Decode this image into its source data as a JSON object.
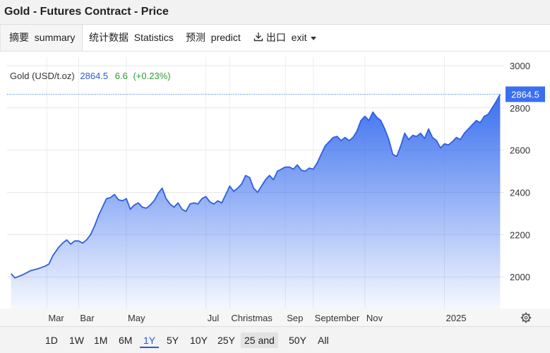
{
  "window": {
    "title": "Gold - Futures Contract - Price"
  },
  "tabs": [
    {
      "label": "摘要  summary",
      "active": true
    },
    {
      "label": "统计数据  Statistics",
      "active": false
    },
    {
      "label": "预测  predict",
      "active": false
    },
    {
      "label": "出口  exit",
      "active": false
    }
  ],
  "quote": {
    "name": "Gold (USD/t.oz)",
    "price": "2864.5",
    "change": "6.6",
    "change_pct": "(+0.23%)",
    "colors": {
      "price": "#2a5bd7",
      "change": "#2a9d3a"
    }
  },
  "range_buttons": [
    {
      "label": "1D",
      "active": false
    },
    {
      "label": "1W",
      "active": false
    },
    {
      "label": "1M",
      "active": false
    },
    {
      "label": "6M",
      "active": false
    },
    {
      "label": "1Y",
      "active": true
    },
    {
      "label": "5Y",
      "active": false
    },
    {
      "label": "10Y",
      "active": false
    },
    {
      "label": "25Y",
      "active": false
    },
    {
      "label": "25 and",
      "active": false
    },
    {
      "label": "50Y",
      "active": false
    },
    {
      "label": "All",
      "active": false
    }
  ],
  "chart_data": {
    "type": "area",
    "title": "",
    "xlabel": "",
    "ylabel": "",
    "ylim": [
      1850,
      3040
    ],
    "y_ticks": [
      2000,
      2200,
      2400,
      2600,
      2800,
      3000
    ],
    "x_ticks": [
      {
        "label": "Mar",
        "x": 1.0
      },
      {
        "label": "Bar",
        "x": 1.8
      },
      {
        "label": "May",
        "x": 3.0
      },
      {
        "label": "Jul",
        "x": 5.0
      },
      {
        "label": "Christmas",
        "x": 5.6
      },
      {
        "label": "Sep",
        "x": 7.0
      },
      {
        "label": "September",
        "x": 7.7
      },
      {
        "label": "Nov",
        "x": 9.0
      },
      {
        "label": "2025",
        "x": 11.0
      }
    ],
    "last_value": 2864.5,
    "last_value_label": "2864.5",
    "accent_color": "#3a6fef",
    "grid": true,
    "series": [
      {
        "points": [
          [
            0.1,
            2015
          ],
          [
            0.2,
            1995
          ],
          [
            0.4,
            2010
          ],
          [
            0.6,
            2030
          ],
          [
            0.8,
            2040
          ],
          [
            0.95,
            2050
          ],
          [
            1.05,
            2060
          ],
          [
            1.15,
            2100
          ],
          [
            1.3,
            2140
          ],
          [
            1.4,
            2160
          ],
          [
            1.5,
            2175
          ],
          [
            1.6,
            2155
          ],
          [
            1.7,
            2170
          ],
          [
            1.8,
            2170
          ],
          [
            1.9,
            2160
          ],
          [
            2.0,
            2175
          ],
          [
            2.1,
            2200
          ],
          [
            2.2,
            2240
          ],
          [
            2.3,
            2290
          ],
          [
            2.4,
            2330
          ],
          [
            2.5,
            2370
          ],
          [
            2.6,
            2375
          ],
          [
            2.7,
            2390
          ],
          [
            2.8,
            2365
          ],
          [
            2.9,
            2360
          ],
          [
            3.0,
            2370
          ],
          [
            3.1,
            2320
          ],
          [
            3.2,
            2340
          ],
          [
            3.3,
            2350
          ],
          [
            3.4,
            2330
          ],
          [
            3.5,
            2325
          ],
          [
            3.6,
            2340
          ],
          [
            3.7,
            2360
          ],
          [
            3.8,
            2395
          ],
          [
            3.9,
            2420
          ],
          [
            4.0,
            2370
          ],
          [
            4.1,
            2345
          ],
          [
            4.2,
            2330
          ],
          [
            4.3,
            2350
          ],
          [
            4.4,
            2320
          ],
          [
            4.5,
            2310
          ],
          [
            4.6,
            2345
          ],
          [
            4.7,
            2350
          ],
          [
            4.8,
            2345
          ],
          [
            4.9,
            2370
          ],
          [
            5.0,
            2380
          ],
          [
            5.1,
            2355
          ],
          [
            5.2,
            2345
          ],
          [
            5.3,
            2360
          ],
          [
            5.4,
            2350
          ],
          [
            5.5,
            2390
          ],
          [
            5.6,
            2430
          ],
          [
            5.7,
            2405
          ],
          [
            5.8,
            2420
          ],
          [
            5.9,
            2440
          ],
          [
            6.0,
            2480
          ],
          [
            6.1,
            2470
          ],
          [
            6.2,
            2420
          ],
          [
            6.3,
            2400
          ],
          [
            6.4,
            2430
          ],
          [
            6.5,
            2460
          ],
          [
            6.6,
            2480
          ],
          [
            6.7,
            2460
          ],
          [
            6.8,
            2500
          ],
          [
            6.9,
            2510
          ],
          [
            7.0,
            2520
          ],
          [
            7.1,
            2520
          ],
          [
            7.2,
            2510
          ],
          [
            7.3,
            2530
          ],
          [
            7.4,
            2505
          ],
          [
            7.5,
            2500
          ],
          [
            7.6,
            2515
          ],
          [
            7.7,
            2510
          ],
          [
            7.8,
            2540
          ],
          [
            7.9,
            2580
          ],
          [
            8.0,
            2620
          ],
          [
            8.1,
            2640
          ],
          [
            8.2,
            2660
          ],
          [
            8.3,
            2665
          ],
          [
            8.4,
            2645
          ],
          [
            8.5,
            2660
          ],
          [
            8.6,
            2645
          ],
          [
            8.7,
            2660
          ],
          [
            8.8,
            2690
          ],
          [
            8.9,
            2740
          ],
          [
            9.0,
            2760
          ],
          [
            9.1,
            2740
          ],
          [
            9.2,
            2780
          ],
          [
            9.3,
            2755
          ],
          [
            9.4,
            2740
          ],
          [
            9.5,
            2700
          ],
          [
            9.6,
            2650
          ],
          [
            9.7,
            2580
          ],
          [
            9.8,
            2570
          ],
          [
            9.9,
            2620
          ],
          [
            10.0,
            2680
          ],
          [
            10.1,
            2650
          ],
          [
            10.2,
            2670
          ],
          [
            10.3,
            2665
          ],
          [
            10.4,
            2680
          ],
          [
            10.5,
            2655
          ],
          [
            10.6,
            2700
          ],
          [
            10.7,
            2660
          ],
          [
            10.8,
            2645
          ],
          [
            10.9,
            2610
          ],
          [
            11.0,
            2630
          ],
          [
            11.1,
            2625
          ],
          [
            11.2,
            2640
          ],
          [
            11.3,
            2660
          ],
          [
            11.4,
            2650
          ],
          [
            11.5,
            2680
          ],
          [
            11.6,
            2700
          ],
          [
            11.7,
            2720
          ],
          [
            11.8,
            2740
          ],
          [
            11.9,
            2730
          ],
          [
            12.0,
            2760
          ],
          [
            12.1,
            2770
          ],
          [
            12.2,
            2800
          ],
          [
            12.3,
            2830
          ],
          [
            12.4,
            2864.5
          ]
        ]
      }
    ]
  }
}
